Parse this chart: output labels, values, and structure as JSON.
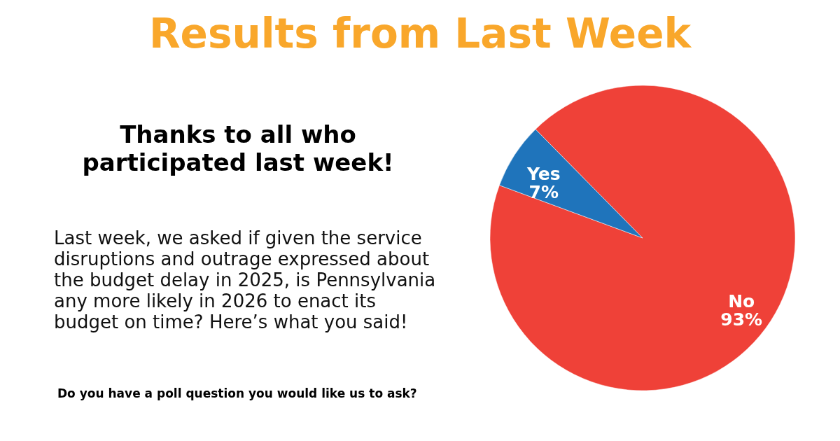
{
  "chart_data": {
    "type": "pie",
    "title": "Results from Last Week",
    "subtitle": "Thanks to all who participated last week!",
    "annotations": [
      "Last week, we asked if given the service disruptions and outrage expressed about the budget delay in 2025, is Pennsylvania any more likely in 2026 to enact its budget on time? Here’s what you said!",
      "Do you have a poll question you would like us to ask?"
    ],
    "categories": [
      "No",
      "Yes"
    ],
    "values": [
      93,
      7
    ],
    "value_labels": [
      "93%",
      "7%"
    ],
    "colors": [
      "#ef4138",
      "#1f74bb"
    ],
    "legend": false
  }
}
